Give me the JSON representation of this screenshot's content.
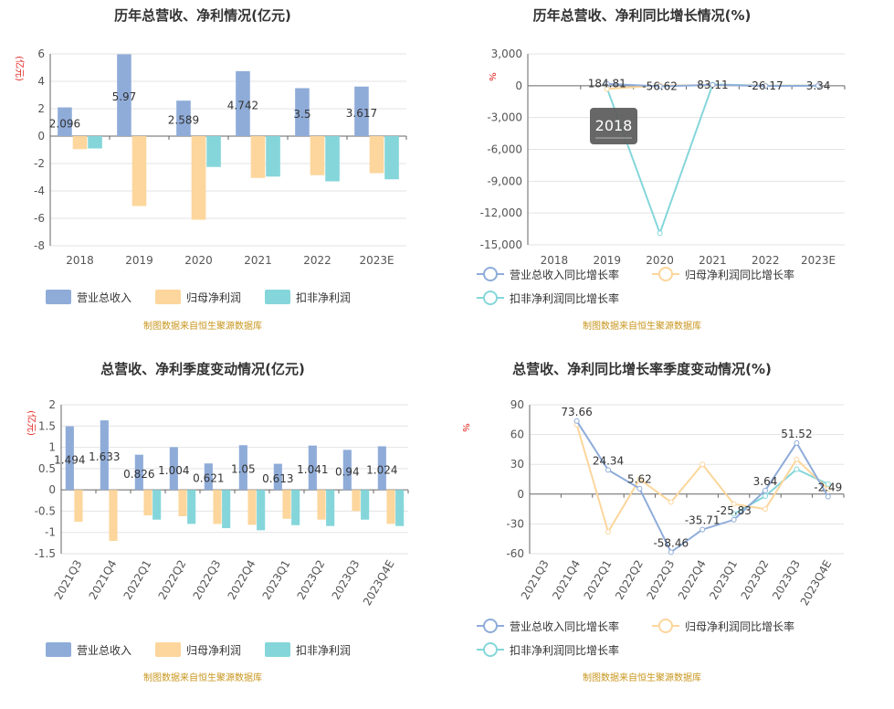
{
  "colors": {
    "revenue": "#8facd9",
    "net_profit": "#fcd69c",
    "deducted_profit": "#85d6da",
    "tooltip_bg": "#5f5f5f",
    "unit_red": "#e0231f",
    "source_gold": "#c8961e"
  },
  "source_note": "制图数据来自恒生聚源数据库",
  "tooltip": {
    "text": "2018",
    "chart": 1
  },
  "chart_data": [
    {
      "type": "bar",
      "title": "历年总营收、净利情况(亿元)",
      "unit": "(亿元)",
      "categories": [
        "2018",
        "2019",
        "2020",
        "2021",
        "2022",
        "2023E"
      ],
      "ylim": [
        -8,
        6
      ],
      "yticks": [
        6,
        4,
        2,
        0,
        -2,
        -4,
        -6,
        -8
      ],
      "tick_labels": [
        "6",
        "4",
        "2",
        "0",
        "-2",
        "-4",
        "-6",
        "-8"
      ],
      "series": [
        {
          "name": "营业总收入",
          "values": [
            2.096,
            5.97,
            2.589,
            4.742,
            3.5,
            3.617
          ]
        },
        {
          "name": "归母净利润",
          "values": [
            -0.95,
            -5.1,
            -6.1,
            -3.05,
            -2.85,
            -2.7
          ]
        },
        {
          "name": "扣非净利润",
          "values": [
            -0.9,
            0,
            -2.25,
            -2.95,
            -3.3,
            -3.15
          ]
        }
      ],
      "data_labels": [
        "2.096",
        "5.97",
        "2.589",
        "4.742",
        "3.5",
        "3.617"
      ],
      "grid": true,
      "legend": "bottom"
    },
    {
      "type": "line",
      "title": "历年总营收、净利同比增长情况(%)",
      "unit": "%",
      "categories": [
        "2018",
        "2019",
        "2020",
        "2021",
        "2022",
        "2023E"
      ],
      "ylim": [
        -15000,
        3000
      ],
      "yticks": [
        3000,
        0,
        -3000,
        -6000,
        -9000,
        -12000,
        -15000
      ],
      "tick_labels": [
        "3,000",
        "0",
        "-3,000",
        "-6,000",
        "-9,000",
        "-12,000",
        "-15,000"
      ],
      "series": [
        {
          "name": "营业总收入同比增长率",
          "values": [
            null,
            184.81,
            -56.62,
            83.11,
            -26.17,
            3.34
          ]
        },
        {
          "name": "归母净利润同比增长率",
          "values": [
            null,
            -300,
            20,
            50,
            6,
            5
          ]
        },
        {
          "name": "扣非净利润同比增长率",
          "values": [
            null,
            -250,
            -13900,
            120,
            10,
            4
          ]
        }
      ],
      "data_labels": [
        "",
        "184.81",
        "-56.62",
        "83.11",
        "-26.17",
        "3.34"
      ],
      "grid": true,
      "legend": "bottom"
    },
    {
      "type": "bar",
      "title": "总营收、净利季度变动情况(亿元)",
      "unit": "(亿元)",
      "categories": [
        "2021Q3",
        "2021Q4",
        "2022Q1",
        "2022Q2",
        "2022Q3",
        "2022Q4",
        "2023Q1",
        "2023Q2",
        "2023Q3",
        "2023Q4E"
      ],
      "ylim": [
        -1.5,
        2
      ],
      "yticks": [
        2,
        1.5,
        1,
        0.5,
        0,
        -0.5,
        -1,
        -1.5
      ],
      "tick_labels": [
        "2",
        "1.5",
        "1",
        "0.5",
        "0",
        "-0.5",
        "-1",
        "-1.5"
      ],
      "series": [
        {
          "name": "营业总收入",
          "values": [
            1.494,
            1.633,
            0.826,
            1.004,
            0.621,
            1.05,
            0.613,
            1.041,
            0.94,
            1.024
          ]
        },
        {
          "name": "归母净利润",
          "values": [
            -0.75,
            -1.2,
            -0.6,
            -0.62,
            -0.8,
            -0.82,
            -0.68,
            -0.7,
            -0.5,
            -0.8
          ]
        },
        {
          "name": "扣非净利润",
          "values": [
            0,
            0,
            -0.7,
            -0.8,
            -0.9,
            -0.95,
            -0.83,
            -0.85,
            -0.7,
            -0.85
          ]
        }
      ],
      "data_labels": [
        "1.494",
        "1.633",
        "0.826",
        "1.004",
        "0.621",
        "1.05",
        "0.613",
        "1.041",
        "0.94",
        "1.024"
      ],
      "grid": true,
      "legend": "bottom"
    },
    {
      "type": "line",
      "title": "总营收、净利同比增长率季度变动情况(%)",
      "unit": "%",
      "categories": [
        "2021Q3",
        "2021Q4",
        "2022Q1",
        "2022Q2",
        "2022Q3",
        "2022Q4",
        "2023Q1",
        "2023Q2",
        "2023Q3",
        "2023Q4E"
      ],
      "ylim": [
        -60,
        90
      ],
      "yticks": [
        90,
        60,
        30,
        0,
        -30,
        -60
      ],
      "tick_labels": [
        "90",
        "60",
        "30",
        "0",
        "-30",
        "-60"
      ],
      "series": [
        {
          "name": "营业总收入同比增长率",
          "values": [
            null,
            73.66,
            24.34,
            5.62,
            -58.46,
            -35.71,
            -25.83,
            3.64,
            51.52,
            -2.49
          ]
        },
        {
          "name": "归母净利润同比增长率",
          "values": [
            null,
            70,
            -38,
            15,
            -8,
            30,
            -10,
            -15,
            35,
            5
          ]
        },
        {
          "name": "扣非净利润同比增长率",
          "values": [
            null,
            null,
            null,
            null,
            null,
            null,
            -20,
            -2,
            25,
            10
          ]
        }
      ],
      "data_labels": [
        "",
        "73.66",
        "24.34",
        "5.62",
        "-58.46",
        "-35.71",
        "-25.83",
        "3.64",
        "51.52",
        "-2.49"
      ],
      "grid": true,
      "legend": "bottom"
    }
  ]
}
